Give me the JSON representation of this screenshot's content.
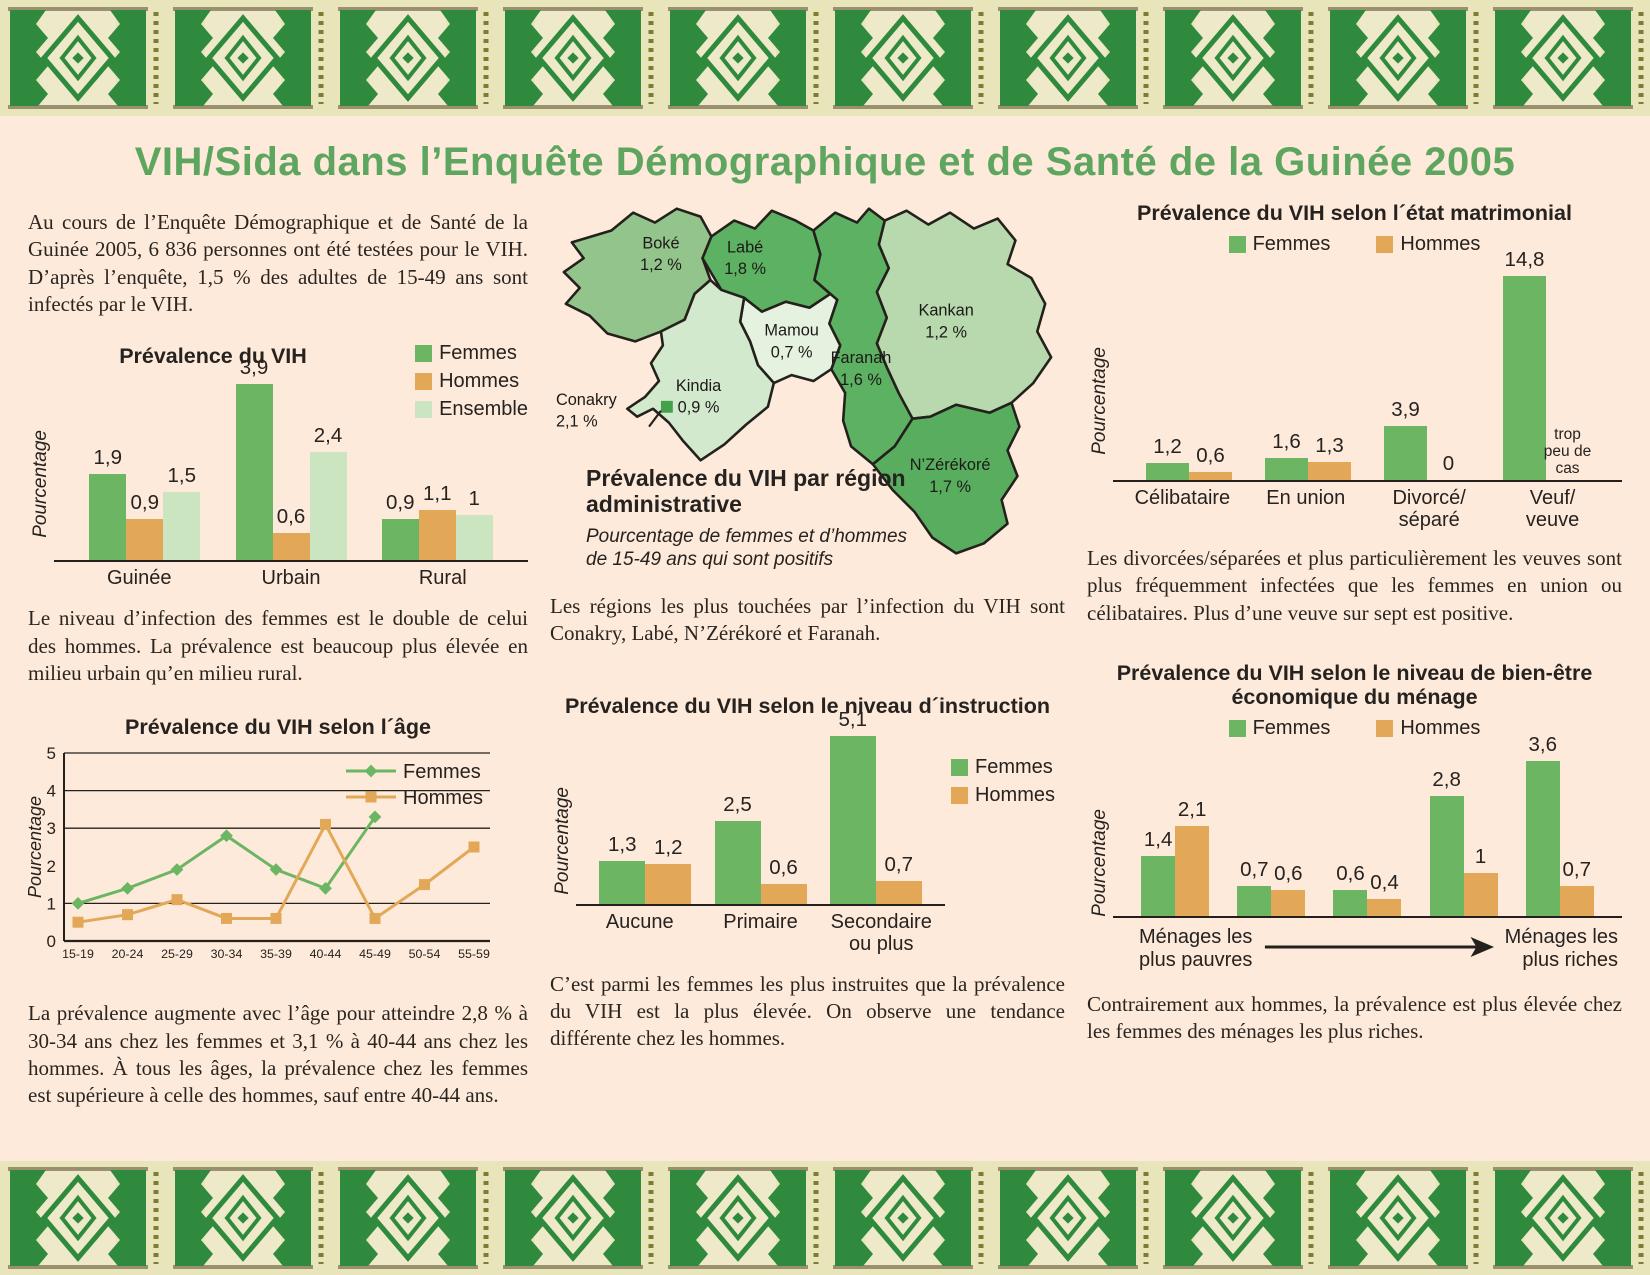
{
  "page_title": "VIH/Sida dans l’Enquête Démographique et de Santé de la Guinée 2005",
  "colors": {
    "Femmes": "#6bb563",
    "Hommes": "#e2a858",
    "Ensemble": "#cbe5c0",
    "title_green": "#5ea55f",
    "page_background": "#fdeada",
    "border_background": "#e9e5bb",
    "pattern_green": "#2f8a3e"
  },
  "left": {
    "intro": "Au cours de l’Enquête Démographique et de Santé de la Guinée 2005, 6 836 personnes ont été testées pour le VIH. D’après l’enquête, 1,5 % des adultes de 15-49 ans sont infectés par le VIH.",
    "after_prevalence": "Le niveau d’infection des femmes est le double de celui des hommes. La prévalence est beaucoup plus élevée en milieu urbain qu’en milieu rural.",
    "after_age": "La prévalence augmente avec l’âge pour atteindre 2,8 % à 30-34 ans chez les femmes et 3,1 % à 40-44 ans chez les hommes. À tous les âges, la prévalence chez les femmes est supérieure à celle des hommes, sauf entre 40-44 ans."
  },
  "middle": {
    "after_map": "Les régions les plus touchées par l’infection du VIH sont Conakry, Labé, N’Zérékoré et Faranah.",
    "after_education": "C’est parmi les femmes les plus instruites que la prévalence du VIH est la plus élevée. On observe une tendance différente chez les hommes."
  },
  "right": {
    "after_marital": "Les divorcées/séparées et plus particulièrement les veuves sont plus fréquemment infectées que les femmes en union ou célibataires. Plus d’une veuve sur sept est positive.",
    "after_wealth": "Contrairement aux hommes, la prévalence est plus élevée chez les femmes des ménages les plus riches."
  },
  "chart_data": [
    {
      "id": "prevalence",
      "type": "bar",
      "title": "Prévalence du VIH",
      "ylabel": "Pourcentage",
      "categories": [
        "Guinée",
        "Urbain",
        "Rural"
      ],
      "series": [
        {
          "name": "Femmes",
          "values": [
            1.9,
            3.9,
            0.9
          ]
        },
        {
          "name": "Hommes",
          "values": [
            0.9,
            0.6,
            1.1
          ]
        },
        {
          "name": "Ensemble",
          "values": [
            1.5,
            2.4,
            1.0
          ]
        }
      ],
      "legend_position": "right"
    },
    {
      "id": "age",
      "type": "line",
      "title": "Prévalence du VIH selon l´âge",
      "ylabel": "Pourcentage",
      "x": [
        "15-19",
        "20-24",
        "25-29",
        "30-34",
        "35-39",
        "40-44",
        "45-49",
        "50-54",
        "55-59"
      ],
      "series": [
        {
          "name": "Femmes",
          "marker": "diamond",
          "values": [
            1.0,
            1.4,
            1.9,
            2.8,
            1.9,
            1.4,
            3.3,
            null,
            null
          ]
        },
        {
          "name": "Hommes",
          "marker": "square",
          "values": [
            0.5,
            0.7,
            1.1,
            0.6,
            0.6,
            3.1,
            0.6,
            1.5,
            2.5
          ]
        }
      ],
      "ylim": [
        0,
        5
      ],
      "yticks": [
        0,
        1,
        2,
        3,
        4,
        5
      ],
      "gridlines": [
        1,
        3,
        4,
        5
      ],
      "legend_position": "top-right-inside"
    },
    {
      "id": "map",
      "type": "choropleth",
      "title": "Prévalence du VIH par région administrative",
      "subtitle": "Pourcentage de femmes et d’hommes de 15-49 ans qui sont positifs",
      "regions": [
        {
          "key": "boke",
          "name": "Boké",
          "value": 1.2,
          "label": "1,2 %",
          "color": "#92c48c"
        },
        {
          "key": "labe",
          "name": "Labé",
          "value": 1.8,
          "label": "1,8 %",
          "color": "#5db162"
        },
        {
          "key": "mamou",
          "name": "Mamou",
          "value": 0.7,
          "label": "0,7 %",
          "color": "#e6f2e0"
        },
        {
          "key": "kindia",
          "name": "Kindia",
          "value": 0.9,
          "label": "0,9 %",
          "color": "#d3e9cd"
        },
        {
          "key": "faranah",
          "name": "Faranah",
          "value": 1.6,
          "label": "1,6 %",
          "color": "#5db162"
        },
        {
          "key": "kankan",
          "name": "Kankan",
          "value": 1.2,
          "label": "1,2 %",
          "color": "#b7d9ad"
        },
        {
          "key": "nzerekore",
          "name": "N’Zérékoré",
          "value": 1.7,
          "label": "1,7 %",
          "color": "#58ae5e"
        },
        {
          "key": "conakry",
          "name": "Conakry",
          "value": 2.1,
          "label": "2,1 %",
          "color": "#45a04c"
        }
      ]
    },
    {
      "id": "education",
      "type": "bar",
      "title": "Prévalence du VIH selon le niveau d´instruction",
      "ylabel": "Pourcentage",
      "categories": [
        "Aucune",
        "Primaire",
        "Secondaire\nou plus"
      ],
      "series": [
        {
          "name": "Femmes",
          "values": [
            1.3,
            2.5,
            5.1
          ]
        },
        {
          "name": "Hommes",
          "values": [
            1.2,
            0.6,
            0.7
          ]
        }
      ],
      "legend_position": "right"
    },
    {
      "id": "marital",
      "type": "bar",
      "title": "Prévalence du VIH selon l´état matrimonial",
      "ylabel": "Pourcentage",
      "categories": [
        "Célibataire",
        "En union",
        "Divorcé/\nséparé",
        "Veuf/\nveuve"
      ],
      "series": [
        {
          "name": "Femmes",
          "values": [
            1.2,
            1.6,
            3.9,
            14.8
          ]
        },
        {
          "name": "Hommes",
          "values": [
            0.6,
            1.3,
            0,
            null
          ]
        }
      ],
      "note": {
        "group": 3,
        "series": 1,
        "text": "trop\npeu de\ncas"
      },
      "legend_position": "top"
    },
    {
      "id": "wealth",
      "type": "bar",
      "title": "Prévalence du VIH selon le niveau de bien-être économique du ménage",
      "ylabel": "Pourcentage",
      "categories": [
        "",
        "",
        "",
        "",
        ""
      ],
      "series": [
        {
          "name": "Femmes",
          "values": [
            1.4,
            0.7,
            0.6,
            2.8,
            3.6
          ]
        },
        {
          "name": "Hommes",
          "values": [
            2.1,
            0.6,
            0.4,
            1.0,
            0.7
          ]
        }
      ],
      "xaxis_annotation": {
        "left": "Ménages les plus pauvres",
        "right": "Ménages les plus riches"
      },
      "legend_position": "top"
    }
  ]
}
